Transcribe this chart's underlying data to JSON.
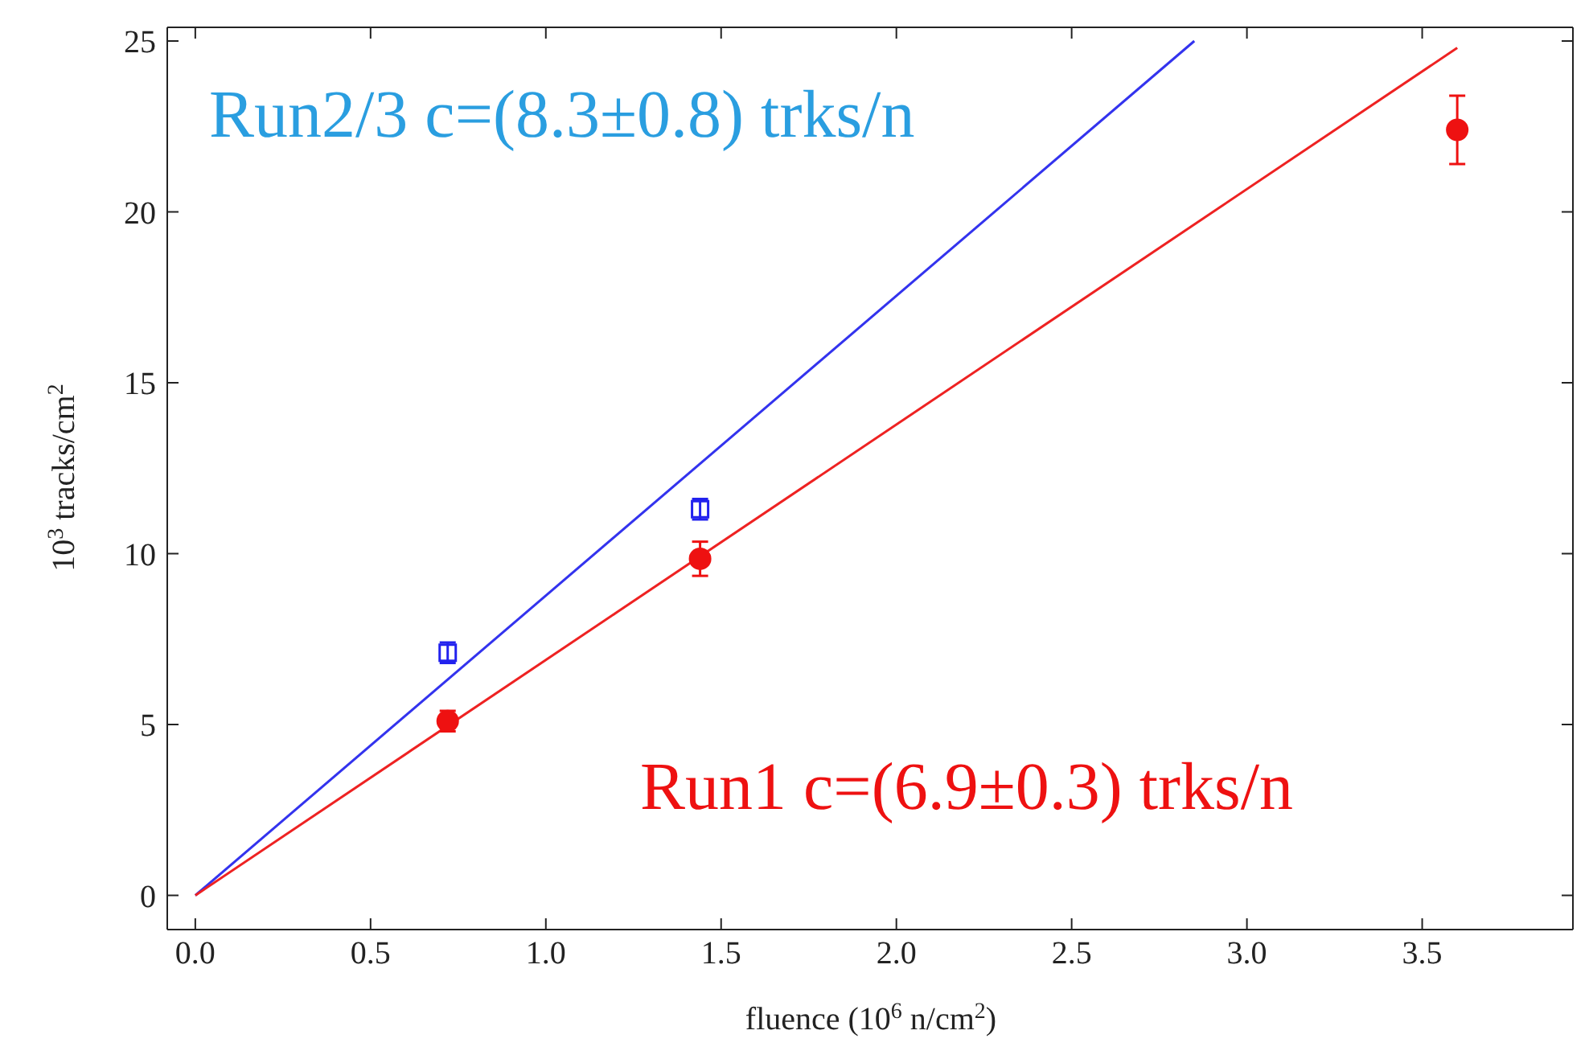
{
  "chart_data": {
    "type": "scatter",
    "xlabel": "fluence (10$^{6}$ n/cm$^{2}$)",
    "ylabel": "10$^{3}$ tracks/cm$^{2}$",
    "xlim": [
      -0.08,
      3.93
    ],
    "ylim": [
      -1,
      25.4
    ],
    "xticks": [
      {
        "value": 0,
        "label": "0.0"
      },
      {
        "value": 0.5,
        "label": "0.5"
      },
      {
        "value": 1,
        "label": "1.0"
      },
      {
        "value": 1.5,
        "label": "1.5"
      },
      {
        "value": 2,
        "label": "2.0"
      },
      {
        "value": 2.5,
        "label": "2.5"
      },
      {
        "value": 3,
        "label": "3.0"
      },
      {
        "value": 3.5,
        "label": "3.5"
      }
    ],
    "yticks": [
      0,
      5,
      10,
      15,
      20,
      25
    ],
    "grid": false,
    "series": [
      {
        "type": "line",
        "color": "#3333ee",
        "x": [
          0,
          2.85
        ],
        "values": [
          0,
          25
        ],
        "marker": "none"
      },
      {
        "type": "line",
        "color": "#ee2222",
        "x": [
          0,
          3.6
        ],
        "values": [
          0,
          24.8
        ],
        "marker": "none"
      },
      {
        "color": "#2222ee",
        "x": [
          0.72,
          1.44
        ],
        "values": [
          7.1,
          11.3
        ],
        "errors": [
          0.3,
          0.3
        ],
        "marker": "square"
      },
      {
        "color": "#ee1111",
        "x": [
          0.72,
          1.44,
          3.6
        ],
        "values": [
          5.1,
          9.85,
          22.4
        ],
        "errors": [
          0.3,
          0.5,
          1.0
        ],
        "marker": "circle"
      }
    ],
    "annotations": [
      "Run2/3 c=(8.3±0.8) trks/n",
      "Run1 c=(6.9±0.3) trks/n"
    ]
  }
}
